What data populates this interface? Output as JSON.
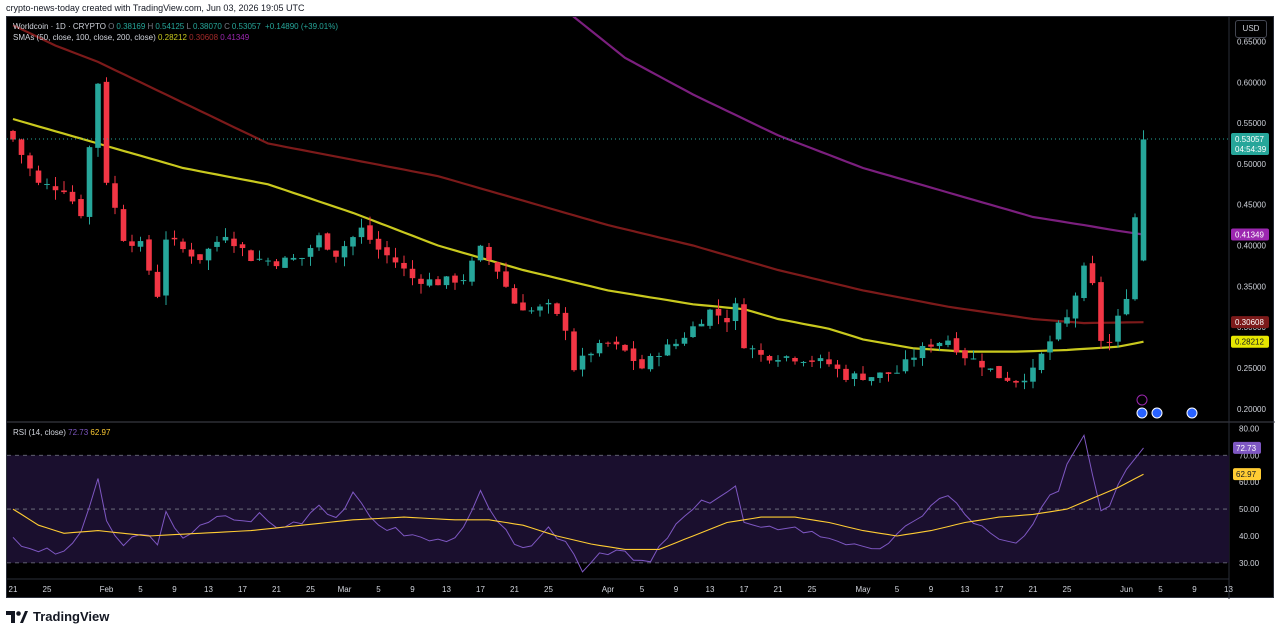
{
  "watermark": "crypto-news-today created with TradingView.com, Jun 03, 2026 19:05 UTC",
  "brand": "TradingView",
  "currency_button": "USD",
  "colors": {
    "bull": "#26a69a",
    "bear": "#f23645",
    "sma50": "#c9c91e",
    "sma100": "#7c1a1a",
    "sma200": "#7b1f7e",
    "rsi": "#7e57c2",
    "rsi_ma": "#ffcc33"
  },
  "legend": {
    "symbol": "Worldcoin · 1D · CRYPTO",
    "o_label": "O",
    "o": "0.38169",
    "h_label": "H",
    "h": "0.54125",
    "l_label": "L",
    "l": "0.38070",
    "c_label": "C",
    "c": "0.53057",
    "change": "+0.14890 (+39.01%)",
    "sma_title": "SMAs (50, close, 100, close, 200, close)",
    "sma50": "0.28212",
    "sma100": "0.30608",
    "sma200": "0.41349",
    "rsi_title": "RSI (14, close)",
    "rsi": "72.73",
    "rsi_ma": "62.97"
  },
  "price_badge": {
    "price": "0.53057",
    "countdown": "04:54:39"
  },
  "chart_data": [
    {
      "type": "candlestick",
      "title": "Worldcoin · 1D · CRYPTO",
      "y_ticks": [
        "0.65000",
        "0.60000",
        "0.55000",
        "0.50000",
        "0.45000",
        "0.40000",
        "0.35000",
        "0.30000",
        "0.25000",
        "0.20000"
      ],
      "ylim": [
        0.185,
        0.68
      ],
      "x_ticks": [
        {
          "label": "21",
          "i": 0
        },
        {
          "label": "25",
          "i": 4
        },
        {
          "label": "Feb",
          "i": 11
        },
        {
          "label": "5",
          "i": 15
        },
        {
          "label": "9",
          "i": 19
        },
        {
          "label": "13",
          "i": 23
        },
        {
          "label": "17",
          "i": 27
        },
        {
          "label": "21",
          "i": 31
        },
        {
          "label": "25",
          "i": 35
        },
        {
          "label": "Mar",
          "i": 39
        },
        {
          "label": "5",
          "i": 43
        },
        {
          "label": "9",
          "i": 47
        },
        {
          "label": "13",
          "i": 51
        },
        {
          "label": "17",
          "i": 55
        },
        {
          "label": "21",
          "i": 59
        },
        {
          "label": "25",
          "i": 63
        },
        {
          "label": "Apr",
          "i": 70
        },
        {
          "label": "5",
          "i": 74
        },
        {
          "label": "9",
          "i": 78
        },
        {
          "label": "13",
          "i": 82
        },
        {
          "label": "17",
          "i": 86
        },
        {
          "label": "21",
          "i": 90
        },
        {
          "label": "25",
          "i": 94
        },
        {
          "label": "May",
          "i": 100
        },
        {
          "label": "5",
          "i": 104
        },
        {
          "label": "9",
          "i": 108
        },
        {
          "label": "13",
          "i": 112
        },
        {
          "label": "17",
          "i": 116
        },
        {
          "label": "21",
          "i": 120
        },
        {
          "label": "25",
          "i": 124
        },
        {
          "label": "Jun",
          "i": 131
        },
        {
          "label": "5",
          "i": 135
        },
        {
          "label": "9",
          "i": 139
        },
        {
          "label": "13",
          "i": 143
        }
      ],
      "last_index": 133,
      "anchors": [
        [
          0,
          0.53
        ],
        [
          3,
          0.475
        ],
        [
          6,
          0.47
        ],
        [
          8,
          0.44
        ],
        [
          10,
          0.6
        ],
        [
          11,
          0.48
        ],
        [
          13,
          0.41
        ],
        [
          15,
          0.4
        ],
        [
          17,
          0.34
        ],
        [
          18,
          0.41
        ],
        [
          20,
          0.395
        ],
        [
          22,
          0.385
        ],
        [
          25,
          0.415
        ],
        [
          28,
          0.385
        ],
        [
          31,
          0.38
        ],
        [
          34,
          0.385
        ],
        [
          36,
          0.41
        ],
        [
          38,
          0.39
        ],
        [
          41,
          0.42
        ],
        [
          43,
          0.395
        ],
        [
          45,
          0.38
        ],
        [
          47,
          0.36
        ],
        [
          50,
          0.355
        ],
        [
          53,
          0.36
        ],
        [
          55,
          0.395
        ],
        [
          57,
          0.37
        ],
        [
          59,
          0.33
        ],
        [
          61,
          0.32
        ],
        [
          63,
          0.325
        ],
        [
          65,
          0.3
        ],
        [
          66,
          0.25
        ],
        [
          68,
          0.27
        ],
        [
          70,
          0.28
        ],
        [
          72,
          0.27
        ],
        [
          74,
          0.25
        ],
        [
          76,
          0.27
        ],
        [
          78,
          0.28
        ],
        [
          80,
          0.3
        ],
        [
          82,
          0.32
        ],
        [
          84,
          0.31
        ],
        [
          85,
          0.325
        ],
        [
          86,
          0.28
        ],
        [
          88,
          0.265
        ],
        [
          90,
          0.265
        ],
        [
          93,
          0.262
        ],
        [
          96,
          0.255
        ],
        [
          98,
          0.24
        ],
        [
          101,
          0.24
        ],
        [
          104,
          0.245
        ],
        [
          106,
          0.265
        ],
        [
          108,
          0.28
        ],
        [
          110,
          0.285
        ],
        [
          112,
          0.265
        ],
        [
          114,
          0.255
        ],
        [
          116,
          0.24
        ],
        [
          118,
          0.235
        ],
        [
          120,
          0.245
        ],
        [
          121,
          0.265
        ],
        [
          123,
          0.3
        ],
        [
          124,
          0.31
        ],
        [
          126,
          0.37
        ],
        [
          127,
          0.35
        ],
        [
          128,
          0.285
        ],
        [
          129,
          0.28
        ],
        [
          130,
          0.31
        ],
        [
          131,
          0.34
        ],
        [
          132,
          0.435
        ],
        [
          133,
          0.53
        ]
      ],
      "series": [
        {
          "name": "SMA 50",
          "anchors": [
            [
              0,
              0.555
            ],
            [
              5,
              0.54
            ],
            [
              10,
              0.525
            ],
            [
              20,
              0.495
            ],
            [
              30,
              0.475
            ],
            [
              40,
              0.44
            ],
            [
              50,
              0.4
            ],
            [
              60,
              0.37
            ],
            [
              70,
              0.345
            ],
            [
              80,
              0.328
            ],
            [
              86,
              0.322
            ],
            [
              90,
              0.31
            ],
            [
              96,
              0.298
            ],
            [
              100,
              0.285
            ],
            [
              106,
              0.274
            ],
            [
              112,
              0.27
            ],
            [
              118,
              0.27
            ],
            [
              124,
              0.272
            ],
            [
              130,
              0.276
            ],
            [
              133,
              0.28212
            ]
          ]
        },
        {
          "name": "SMA 100",
          "anchors": [
            [
              0,
              0.67
            ],
            [
              5,
              0.645
            ],
            [
              10,
              0.625
            ],
            [
              20,
              0.575
            ],
            [
              30,
              0.525
            ],
            [
              40,
              0.505
            ],
            [
              50,
              0.485
            ],
            [
              60,
              0.455
            ],
            [
              70,
              0.425
            ],
            [
              80,
              0.4
            ],
            [
              90,
              0.37
            ],
            [
              100,
              0.345
            ],
            [
              110,
              0.325
            ],
            [
              120,
              0.31
            ],
            [
              126,
              0.305
            ],
            [
              133,
              0.30608
            ]
          ]
        },
        {
          "name": "SMA 200",
          "anchors": [
            [
              62,
              0.715
            ],
            [
              66,
              0.68
            ],
            [
              72,
              0.63
            ],
            [
              80,
              0.585
            ],
            [
              90,
              0.535
            ],
            [
              100,
              0.495
            ],
            [
              110,
              0.465
            ],
            [
              120,
              0.435
            ],
            [
              126,
              0.425
            ],
            [
              130,
              0.418
            ],
            [
              133,
              0.41349
            ]
          ]
        }
      ]
    },
    {
      "type": "line",
      "title": "RSI (14, close)",
      "y_ticks": [
        "80.00",
        "70.00",
        "60.00",
        "50.00",
        "40.00",
        "30.00"
      ],
      "ylim": [
        24,
        82
      ],
      "band": [
        30,
        70
      ],
      "series": [
        {
          "name": "RSI",
          "anchors": [
            [
              0,
              40
            ],
            [
              2,
              34
            ],
            [
              4,
              35
            ],
            [
              6,
              33
            ],
            [
              8,
              42
            ],
            [
              10,
              60
            ],
            [
              11,
              45
            ],
            [
              13,
              36
            ],
            [
              15,
              42
            ],
            [
              17,
              36
            ],
            [
              18,
              48
            ],
            [
              20,
              40
            ],
            [
              22,
              43
            ],
            [
              25,
              48
            ],
            [
              27,
              45
            ],
            [
              29,
              48
            ],
            [
              31,
              43
            ],
            [
              34,
              46
            ],
            [
              36,
              52
            ],
            [
              38,
              47
            ],
            [
              40,
              55
            ],
            [
              42,
              47
            ],
            [
              44,
              43
            ],
            [
              47,
              40
            ],
            [
              50,
              38
            ],
            [
              53,
              42
            ],
            [
              55,
              56
            ],
            [
              57,
              44
            ],
            [
              59,
              38
            ],
            [
              61,
              35
            ],
            [
              63,
              42
            ],
            [
              65,
              38
            ],
            [
              67,
              28
            ],
            [
              69,
              34
            ],
            [
              71,
              35
            ],
            [
              73,
              31
            ],
            [
              75,
              30
            ],
            [
              77,
              40
            ],
            [
              79,
              47
            ],
            [
              81,
              52
            ],
            [
              83,
              55
            ],
            [
              85,
              58
            ],
            [
              86,
              45
            ],
            [
              88,
              42
            ],
            [
              91,
              44
            ],
            [
              94,
              41
            ],
            [
              97,
              39
            ],
            [
              99,
              36
            ],
            [
              101,
              34
            ],
            [
              104,
              40
            ],
            [
              106,
              45
            ],
            [
              108,
              52
            ],
            [
              110,
              55
            ],
            [
              112,
              48
            ],
            [
              114,
              43
            ],
            [
              116,
              38
            ],
            [
              118,
              37
            ],
            [
              120,
              43
            ],
            [
              121,
              50
            ],
            [
              123,
              58
            ],
            [
              124,
              67
            ],
            [
              126,
              78
            ],
            [
              127,
              64
            ],
            [
              128,
              50
            ],
            [
              129,
              52
            ],
            [
              130,
              60
            ],
            [
              131,
              66
            ],
            [
              132,
              70
            ],
            [
              133,
              72.73
            ]
          ]
        },
        {
          "name": "RSI-based MA",
          "anchors": [
            [
              0,
              50
            ],
            [
              3,
              44
            ],
            [
              6,
              41
            ],
            [
              10,
              42
            ],
            [
              16,
              40
            ],
            [
              22,
              41
            ],
            [
              28,
              42
            ],
            [
              34,
              44
            ],
            [
              40,
              46
            ],
            [
              46,
              47
            ],
            [
              52,
              46
            ],
            [
              56,
              46
            ],
            [
              60,
              44
            ],
            [
              64,
              40
            ],
            [
              68,
              37
            ],
            [
              72,
              35
            ],
            [
              76,
              35
            ],
            [
              80,
              40
            ],
            [
              84,
              45
            ],
            [
              88,
              47
            ],
            [
              92,
              47
            ],
            [
              96,
              45
            ],
            [
              100,
              42
            ],
            [
              104,
              40
            ],
            [
              108,
              42
            ],
            [
              112,
              45
            ],
            [
              116,
              47
            ],
            [
              120,
              48
            ],
            [
              124,
              50
            ],
            [
              127,
              54
            ],
            [
              130,
              58
            ],
            [
              133,
              62.97
            ]
          ]
        }
      ]
    }
  ]
}
